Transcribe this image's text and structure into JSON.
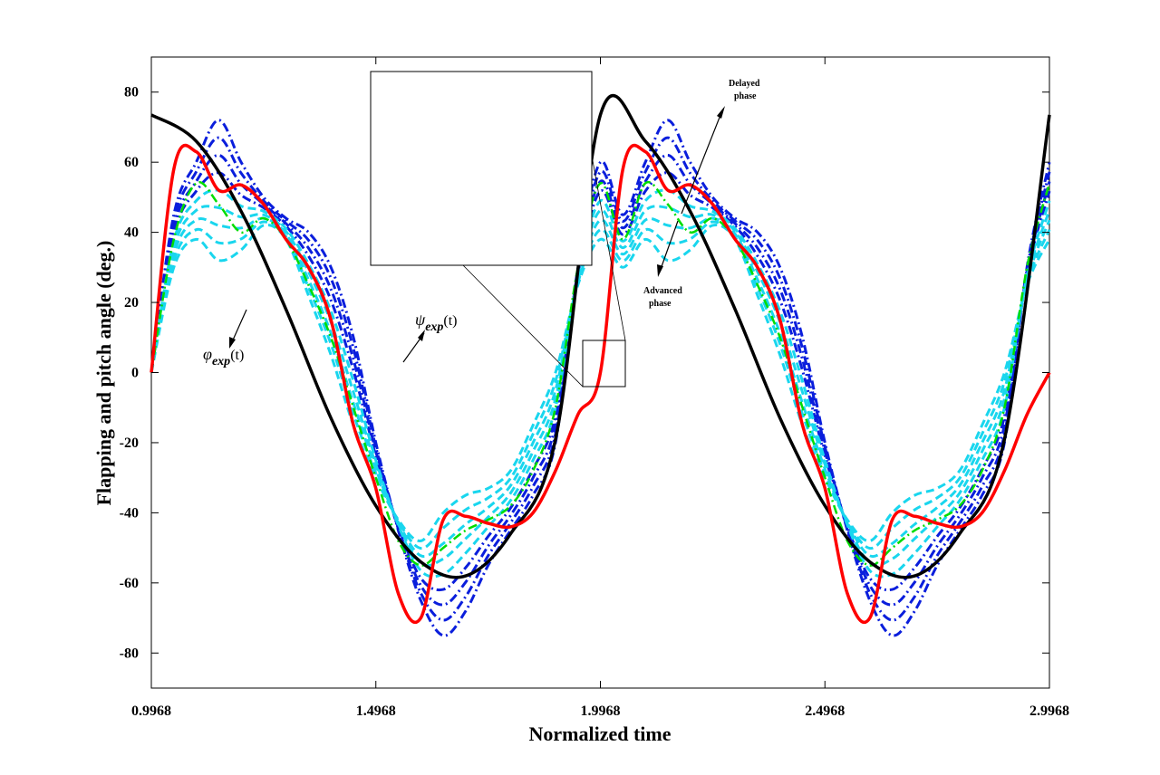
{
  "chart_data": {
    "type": "line",
    "title": "",
    "xlabel": "Normalized time",
    "ylabel": "Flapping and pitch angle (deg.)",
    "xlim": [
      0.9968,
      2.9968
    ],
    "ylim": [
      -90,
      90
    ],
    "xticks": [
      "0.9968",
      "1.4968",
      "1.9968",
      "2.4968",
      "2.9968"
    ],
    "xtick_values": [
      0.9968,
      1.4968,
      1.9968,
      2.4968,
      2.9968
    ],
    "yticks": [
      -80,
      -60,
      -40,
      -20,
      0,
      20,
      40,
      60,
      80
    ],
    "grid": false,
    "series": [
      {
        "label": "phi_exp",
        "color": "#000000",
        "style": "solid",
        "x": [
          0.9968,
          1.0968,
          1.1968,
          1.2968,
          1.3968,
          1.4968,
          1.5968,
          1.6968,
          1.7968,
          1.8968,
          1.9968,
          2.0968,
          2.1968,
          2.2968,
          2.3968,
          2.4968,
          2.5968,
          2.6968,
          2.7968,
          2.8968,
          2.9968
        ],
        "y": [
          73.5,
          66,
          46,
          18,
          -13,
          -38,
          -54,
          -58,
          -46,
          -19,
          73.5,
          66,
          46,
          18,
          -13,
          -38,
          -54,
          -58,
          -46,
          -19,
          73.5
        ]
      },
      {
        "label": "psi_exp",
        "color": "#ff0000",
        "style": "solid",
        "x": [
          0.9968,
          1.0468,
          1.0968,
          1.1468,
          1.1968,
          1.2468,
          1.2968,
          1.3468,
          1.3968,
          1.4468,
          1.4968,
          1.5468,
          1.5968,
          1.6468,
          1.6968,
          1.7468,
          1.7968,
          1.8468,
          1.8968,
          1.9468,
          1.9968,
          2.0468,
          2.0968,
          2.1468,
          2.1968,
          2.2468,
          2.2968,
          2.3468,
          2.3968,
          2.4468,
          2.4968,
          2.5468,
          2.5968,
          2.6468,
          2.6968,
          2.7468,
          2.7968,
          2.8468,
          2.8968,
          2.9468,
          2.9968
        ],
        "y": [
          0,
          58,
          63,
          52,
          53.5,
          48,
          38,
          30,
          15,
          -15,
          -33,
          -63,
          -70,
          -42,
          -41,
          -43,
          -44,
          -40,
          -28,
          -12,
          0,
          58,
          63,
          52,
          53.5,
          48,
          38,
          30,
          15,
          -15,
          -33,
          -63,
          -70,
          -42,
          -41,
          -43,
          -44,
          -40,
          -28,
          -12,
          0
        ]
      },
      {
        "label": "delayed family (blue dash-dot, extreme)",
        "color": "#0000ff",
        "style": "dashdot",
        "x": [
          0.9968,
          1.0468,
          1.0968,
          1.1468,
          1.1968,
          1.2468,
          1.2968,
          1.3468,
          1.3968,
          1.4468,
          1.4968,
          1.5468,
          1.5968,
          1.6468,
          1.6968,
          1.7468,
          1.7968,
          1.8468,
          1.8968,
          1.9468,
          1.9968
        ],
        "y": [
          0,
          45,
          60,
          72,
          60,
          50,
          44,
          40,
          30,
          10,
          -20,
          -45,
          -65,
          -75,
          -68,
          -55,
          -45,
          -35,
          -20,
          30,
          60
        ]
      },
      {
        "label": "reference (green dash-dot)",
        "color": "#00dd00",
        "style": "dashdot",
        "x": [
          0.9968,
          1.0468,
          1.0968,
          1.1468,
          1.1968,
          1.2468,
          1.2968,
          1.3468,
          1.3968,
          1.4468,
          1.4968,
          1.5468,
          1.5968,
          1.6468,
          1.6968,
          1.7468,
          1.7968,
          1.8468,
          1.8968,
          1.9468,
          1.9968
        ],
        "y": [
          0,
          38,
          54,
          48,
          40,
          44,
          38,
          25,
          10,
          -10,
          -30,
          -48,
          -55,
          -50,
          -45,
          -42,
          -38,
          -28,
          -10,
          30,
          54
        ]
      },
      {
        "label": "advanced family (cyan dash, extreme)",
        "color": "#00e5ee",
        "style": "dashed",
        "x": [
          0.9968,
          1.0468,
          1.0968,
          1.1468,
          1.1968,
          1.2468,
          1.2968,
          1.3468,
          1.3968,
          1.4468,
          1.4968,
          1.5468,
          1.5968,
          1.6468,
          1.6968,
          1.7468,
          1.7968,
          1.8468,
          1.8968,
          1.9468,
          1.9968
        ],
        "y": [
          0,
          30,
          38,
          32,
          35,
          42,
          38,
          22,
          5,
          -15,
          -30,
          -42,
          -48,
          -40,
          -35,
          -33,
          -28,
          -15,
          0,
          25,
          38
        ]
      }
    ],
    "annotations": [
      {
        "text": "Delayed",
        "text2": "phase"
      },
      {
        "text": "Advanced",
        "text2": "phase"
      },
      {
        "symbol": "φ",
        "sub": "exp",
        "arg": "(t)"
      },
      {
        "symbol": "ψ",
        "sub": "exp",
        "arg": "(t)"
      }
    ]
  }
}
